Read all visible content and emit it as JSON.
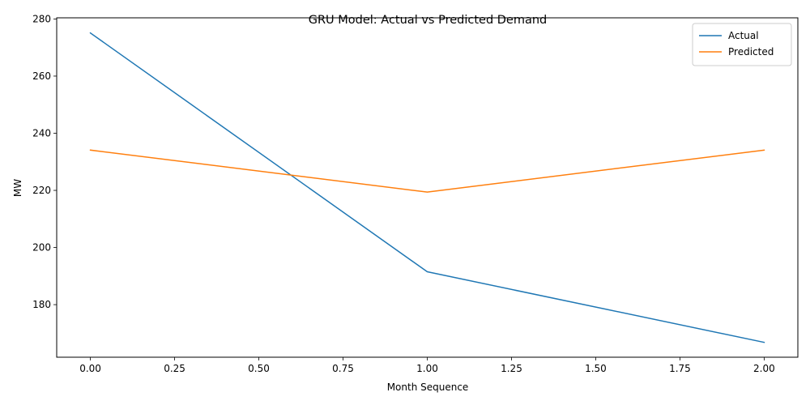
{
  "chart_data": {
    "type": "line",
    "title": "GRU Model: Actual vs Predicted Demand",
    "xlabel": "Month Sequence",
    "ylabel": "MW",
    "x": [
      0,
      1,
      2
    ],
    "xlim": [
      -0.1,
      2.1
    ],
    "ylim": [
      161.6,
      280.4
    ],
    "xticks": [
      0.0,
      0.25,
      0.5,
      0.75,
      1.0,
      1.25,
      1.5,
      1.75,
      2.0
    ],
    "xtick_labels": [
      "0.00",
      "0.25",
      "0.50",
      "0.75",
      "1.00",
      "1.25",
      "1.50",
      "1.75",
      "2.00"
    ],
    "yticks": [
      180,
      200,
      220,
      240,
      260,
      280
    ],
    "ytick_labels": [
      "180",
      "200",
      "220",
      "240",
      "260",
      "280"
    ],
    "grid": false,
    "legend": "top-right",
    "series": [
      {
        "name": "Actual",
        "color": "#1f77b4",
        "values": [
          275.1,
          191.5,
          166.8
        ]
      },
      {
        "name": "Predicted",
        "color": "#ff7f0e",
        "values": [
          234.1,
          219.4,
          234.1
        ]
      }
    ]
  }
}
